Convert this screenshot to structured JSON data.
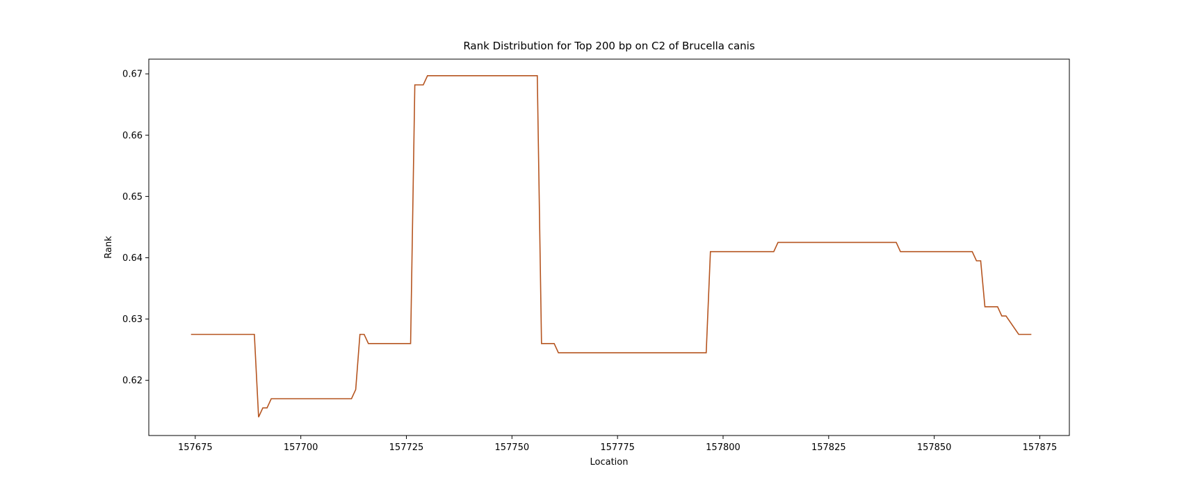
{
  "chart_data": {
    "type": "line",
    "title": "Rank Distribution for Top 200 bp on C2 of Brucella canis",
    "xlabel": "Location",
    "ylabel": "Rank",
    "xlim": [
      157664,
      157882
    ],
    "ylim": [
      0.611,
      0.6724
    ],
    "xticks": [
      157675,
      157700,
      157725,
      157750,
      157775,
      157800,
      157825,
      157850,
      157875
    ],
    "yticks": [
      0.62,
      0.63,
      0.64,
      0.65,
      0.66,
      0.67
    ],
    "xtick_labels": [
      "157675",
      "157700",
      "157725",
      "157750",
      "157775",
      "157800",
      "157825",
      "157850",
      "157875"
    ],
    "ytick_labels": [
      "0.62",
      "0.63",
      "0.64",
      "0.65",
      "0.66",
      "0.67"
    ],
    "grid": false,
    "line_color": "#b5541f",
    "series": [
      {
        "x": [
          157674,
          157689,
          157690,
          157691,
          157692,
          157693,
          157712,
          157713,
          157714,
          157715,
          157716,
          157726,
          157727,
          157729,
          157730,
          157756,
          157757,
          157760,
          157761,
          157796,
          157797,
          157812,
          157813,
          157841,
          157842,
          157859,
          157860,
          157861,
          157862,
          157865,
          157866,
          157867,
          157870,
          157873
        ],
        "y": [
          0.6275,
          0.6275,
          0.614,
          0.6155,
          0.6155,
          0.617,
          0.617,
          0.6185,
          0.6275,
          0.6275,
          0.626,
          0.626,
          0.6682,
          0.6682,
          0.6697,
          0.6697,
          0.626,
          0.626,
          0.6245,
          0.6245,
          0.641,
          0.641,
          0.6425,
          0.6425,
          0.641,
          0.641,
          0.6395,
          0.6395,
          0.632,
          0.632,
          0.6305,
          0.6305,
          0.6275,
          0.6275
        ]
      }
    ]
  }
}
